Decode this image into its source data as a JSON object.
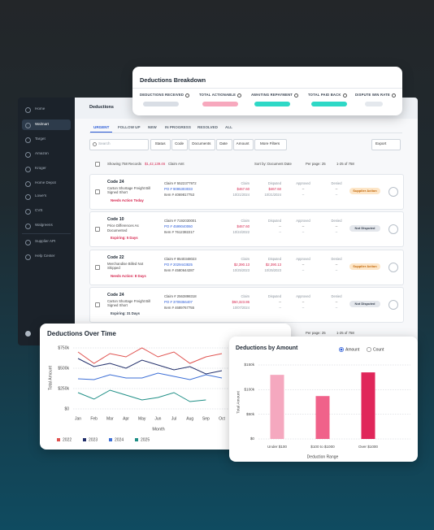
{
  "sidebar": {
    "items": [
      "Home",
      "Walmart",
      "Target",
      "Amazon",
      "Kroger",
      "Home Depot",
      "Lowe's",
      "CVS",
      "Walgreens"
    ],
    "active": 1,
    "footer": [
      "Supplier API",
      "Help Center"
    ]
  },
  "app": {
    "title": "Deductions",
    "tabs": [
      "URGENT",
      "FOLLOW UP",
      "NEW",
      "IN PROGRESS",
      "RESOLVED",
      "ALL"
    ],
    "active_tab": 0,
    "search": "Search",
    "filters": [
      "Status",
      "Code",
      "Documents",
      "Date",
      "Amount",
      "More Filters"
    ],
    "export": "Export",
    "summary": "Showing 758 Records",
    "amount": "$1,42,139.46",
    "amount_label": "Claim Amt",
    "sort": "Sort by: Document Date",
    "per_page": "Per page: 25",
    "range": "1-25 of 758",
    "columns": [
      "Claim",
      "Disputed",
      "Approved",
      "Denied"
    ],
    "rows": [
      {
        "code": "Code 24",
        "desc": "Carton Shortage Freight Bill Signed Short",
        "alert": "Needs Action Today",
        "alert_color": "#d6264f",
        "claim_no": "Claim # 5522377972",
        "po": "PO # 9095303033",
        "item": "Item # 4069817753",
        "claim": "$467.60",
        "claim_date": "10/21/2024",
        "disputed": "$467.60",
        "disputed_date": "10/21/2024",
        "approved": "--",
        "approved_date": "--",
        "denied": "--",
        "denied_date": "--",
        "status": "Supplier Action"
      },
      {
        "code": "Code 10",
        "desc": "Price Differences As Documented",
        "alert": "Expiring: 5 Days",
        "alert_color": "#d6264f",
        "claim_no": "Claim # 7192030001",
        "po": "PO # 4599040060",
        "item": "Item # 7612382217",
        "claim": "$467.60",
        "claim_date": "10/24/2022",
        "disputed": "--",
        "disputed_date": "--",
        "approved": "--",
        "approved_date": "--",
        "denied": "--",
        "denied_date": "--",
        "status": "Not Disputed"
      },
      {
        "code": "Code 22",
        "desc": "Merchandise Billed Not Shipped",
        "alert": "Needs Action: 8 Days",
        "alert_color": "#d6264f",
        "claim_no": "Claim # 8540348023",
        "po": "PO # 2029443825",
        "item": "Item # 4580644287",
        "claim": "$2,390.13",
        "claim_date": "10/25/2023",
        "disputed": "$2,390.13",
        "disputed_date": "10/25/2023",
        "approved": "--",
        "approved_date": "--",
        "denied": "--",
        "denied_date": "--",
        "status": "Supplier Action"
      },
      {
        "code": "Code 24",
        "desc": "Carton Shortage Freight Bill Signed Short",
        "alert": "Expiring: 31 Days",
        "alert_color": "#3a4452",
        "claim_no": "Claim # 2563898318",
        "po": "PO # 3709356407",
        "item": "Item # 4689767755",
        "claim": "$50,323.86",
        "claim_date": "10/07/2024",
        "disputed": "--",
        "disputed_date": "--",
        "approved": "--",
        "approved_date": "--",
        "denied": "--",
        "denied_date": "--",
        "status": "Not Disputed"
      }
    ]
  },
  "breakdown": {
    "title": "Deductions Breakdown",
    "metrics": [
      "DEDUCTIONS RECEIVED",
      "TOTAL ACTIONABLE",
      "AWAITING REPAYMENT",
      "TOTAL PAID BACK",
      "DISPUTE WIN RATE"
    ],
    "colors": [
      "#d9dee5",
      "#f7a8bd",
      "#2ed8c6",
      "#2ed8c6",
      "#e4e8ed"
    ]
  },
  "chart_data": [
    {
      "type": "line",
      "title": "Deductions Over Time",
      "y_label": "Total Amount",
      "x_label": "Month",
      "categories": [
        "Jan",
        "Feb",
        "Mar",
        "Apr",
        "May",
        "Jun",
        "Jul",
        "Aug",
        "Sep",
        "Oct"
      ],
      "series": [
        {
          "name": "2022",
          "color": "#e0524f",
          "values": [
            700000,
            560000,
            680000,
            640000,
            750000,
            640000,
            700000,
            560000,
            640000,
            680000
          ]
        },
        {
          "name": "2023",
          "color": "#23306b",
          "values": [
            620000,
            520000,
            560000,
            500000,
            600000,
            540000,
            480000,
            520000,
            430000,
            470000
          ]
        },
        {
          "name": "2024",
          "color": "#3d6fd6",
          "values": [
            370000,
            360000,
            420000,
            380000,
            380000,
            440000,
            400000,
            360000,
            420000,
            380000
          ]
        },
        {
          "name": "2025",
          "color": "#1f8f86",
          "values": [
            200000,
            120000,
            230000,
            170000,
            110000,
            140000,
            200000,
            90000,
            110000,
            null
          ]
        }
      ],
      "ylim": [
        0,
        750000
      ],
      "yticks": [
        {
          "value": 0,
          "label": "$0"
        },
        {
          "value": 250000,
          "label": "$250k"
        },
        {
          "value": 500000,
          "label": "$500k"
        },
        {
          "value": 750000,
          "label": "$750k"
        }
      ],
      "grid": true,
      "legend": "bottom"
    },
    {
      "type": "bar",
      "title": "Deductions by Amount",
      "options": [
        "Amount",
        "Count"
      ],
      "selected": 0,
      "y_label": "Total Amount",
      "x_label": "Deduction Range",
      "categories": [
        "Under $100",
        "$100 to $1000",
        "Over $1000"
      ],
      "values": [
        130000,
        87000,
        135000
      ],
      "colors": [
        "#f5a8bf",
        "#f0628a",
        "#e0265a"
      ],
      "ylim": [
        0,
        150000
      ],
      "yticks": [
        {
          "value": 0,
          "label": "$0"
        },
        {
          "value": 50000,
          "label": "$50k"
        },
        {
          "value": 100000,
          "label": "$100k"
        },
        {
          "value": 150000,
          "label": "$150k"
        }
      ],
      "grid": true
    }
  ]
}
